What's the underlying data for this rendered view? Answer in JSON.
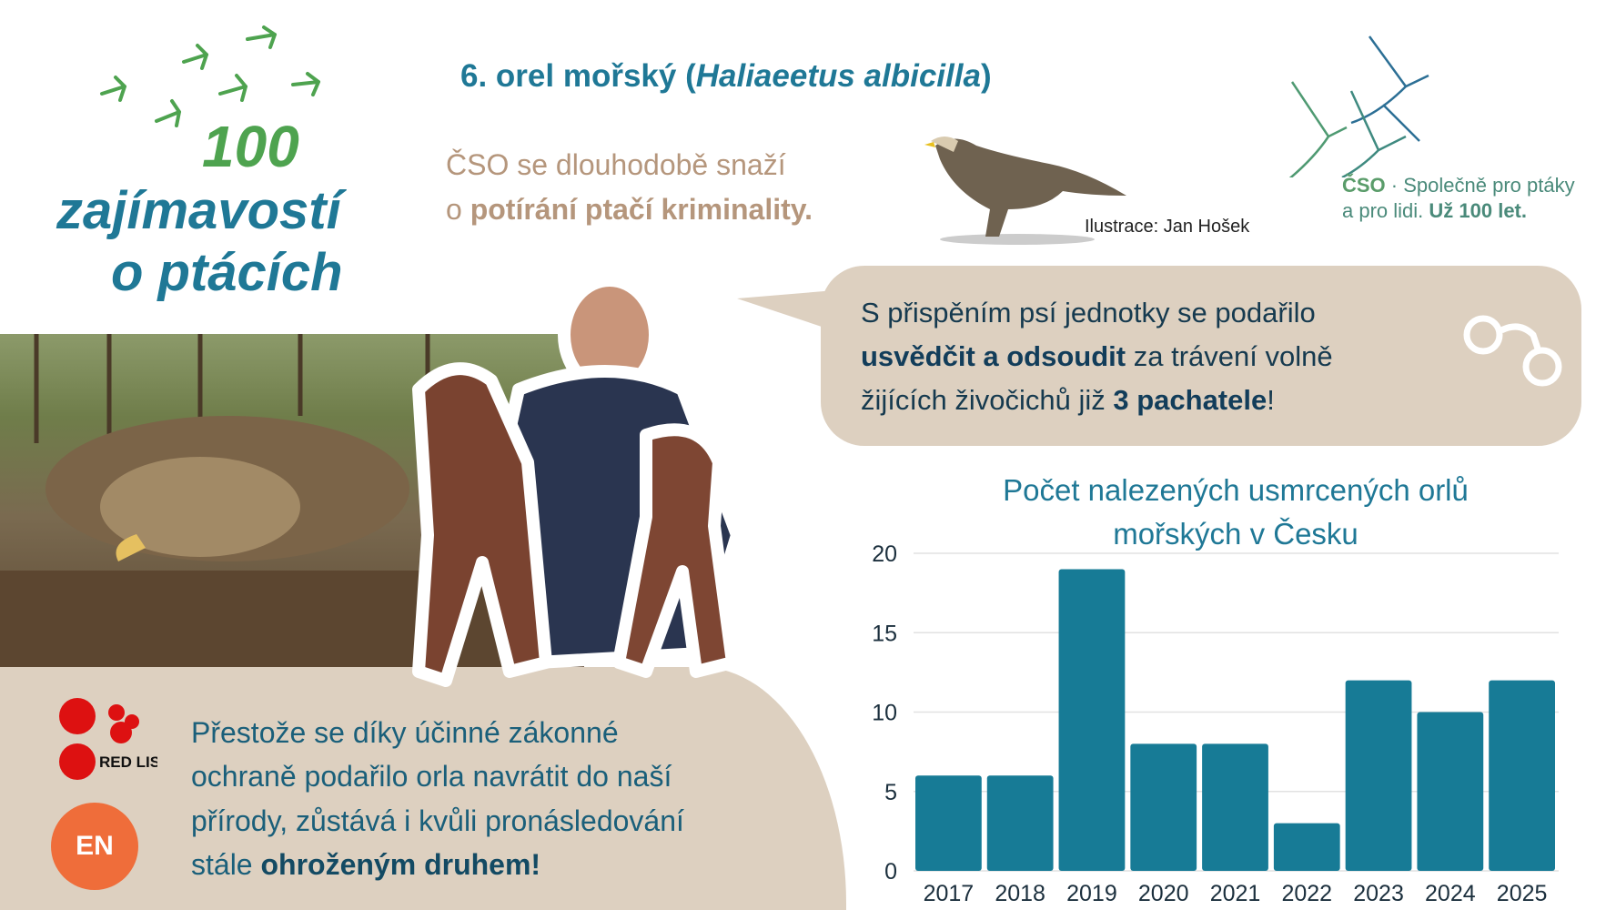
{
  "header": {
    "number": "6. orel mořský (",
    "latin": "Haliaeetus albicilla",
    "close": ")"
  },
  "intro": {
    "line1": "ČSO se dlouhodobě snaží",
    "line2_prefix": "o ",
    "line2_bold": "potírání ptačí kriminality."
  },
  "illustration_credit": "Ilustrace: Jan Hošek",
  "series_logo": {
    "line1": "100",
    "line2": "zajímavostí",
    "line3": "o ptácích"
  },
  "org_logo": {
    "abbr": "ČSO",
    "tagline1": " · Společně pro ptáky",
    "tagline2": "a pro lidi. ",
    "tagline2_bold": "Už 100 let."
  },
  "bubble": {
    "l1": "S přispěním psí jednotky se podařilo",
    "l2_bold": "usvědčit a odsoudit",
    "l2_rest": " za trávení volně",
    "l3_pre": "žijících živočichů již ",
    "l3_bold": "3 pachatele",
    "l3_post": "!",
    "icon": "handcuffs-icon"
  },
  "conservation": {
    "l1": "Přestože se díky účinné zákonné",
    "l2": "ochraně podařilo orla navrátit do naší",
    "l3": "přírody, zůstává i kvůli pronásledování",
    "l4_pre": "stále ",
    "l4_bold": "ohroženým druhem!",
    "redlist_label": "RED LIST",
    "status": "EN",
    "status_color": "#ef6d3a"
  },
  "chart_data": {
    "type": "bar",
    "title": "Počet nalezených usmrcených orlů mořských v Česku",
    "title_l1": "Počet nalezených usmrcených orlů",
    "title_l2": "mořských v Česku",
    "categories": [
      "2017",
      "2018",
      "2019",
      "2020",
      "2021",
      "2022",
      "2023",
      "2024",
      "2025"
    ],
    "values": [
      6,
      6,
      19,
      8,
      8,
      3,
      12,
      10,
      12
    ],
    "ylim": [
      0,
      20
    ],
    "yticks": [
      "0",
      "5",
      "10",
      "15",
      "20"
    ],
    "grid": true,
    "bar_color": "#177b96"
  }
}
